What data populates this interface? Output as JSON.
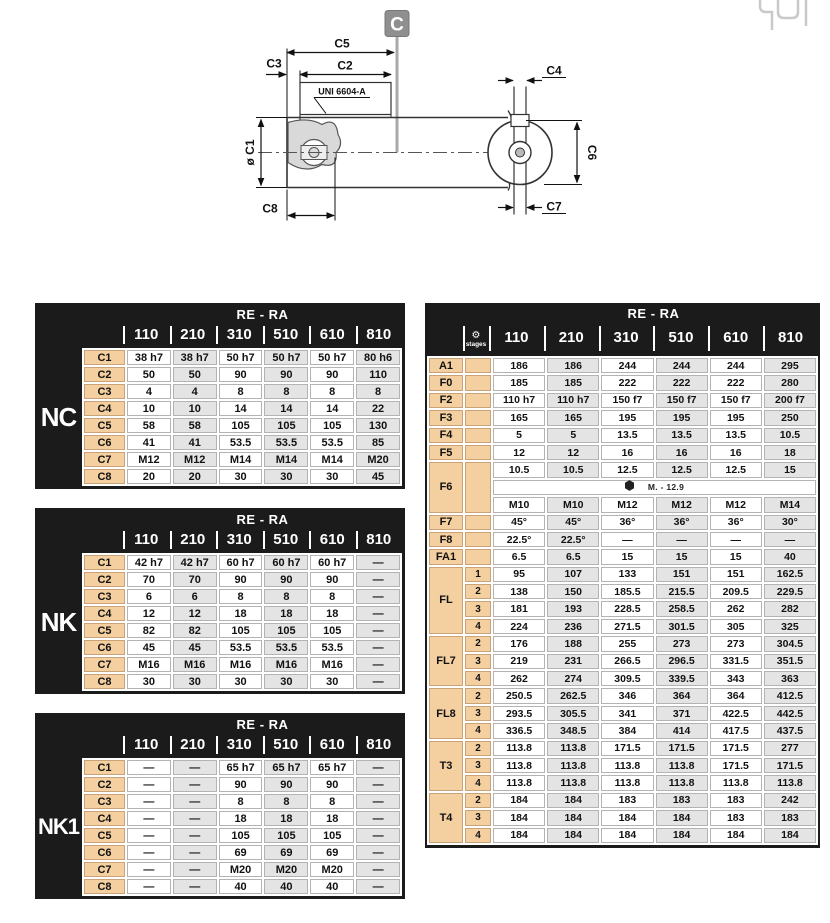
{
  "page_badge": "C",
  "drawing": {
    "labels": {
      "c5": "C5",
      "c2": "C2",
      "c3": "C3",
      "c1": "ø C1",
      "c8": "C8",
      "uni": "UNI 6604-A",
      "c4": "C4",
      "c6": "C6",
      "c7": "C7"
    }
  },
  "colors": {
    "header_black": "#1b1b1b",
    "label_peach": "#f4d0a0",
    "alt_gray": "#e4e4e4",
    "white": "#ffffff"
  },
  "left_tables": [
    {
      "name": "NC",
      "header": "RE - RA",
      "columns": [
        "110",
        "210",
        "310",
        "510",
        "610",
        "810"
      ],
      "rows": [
        {
          "label": "C1",
          "values": [
            "38 h7",
            "38 h7",
            "50 h7",
            "50 h7",
            "50 h7",
            "80 h6"
          ]
        },
        {
          "label": "C2",
          "values": [
            "50",
            "50",
            "90",
            "90",
            "90",
            "110"
          ]
        },
        {
          "label": "C3",
          "values": [
            "4",
            "4",
            "8",
            "8",
            "8",
            "8"
          ]
        },
        {
          "label": "C4",
          "values": [
            "10",
            "10",
            "14",
            "14",
            "14",
            "22"
          ]
        },
        {
          "label": "C5",
          "values": [
            "58",
            "58",
            "105",
            "105",
            "105",
            "130"
          ]
        },
        {
          "label": "C6",
          "values": [
            "41",
            "41",
            "53.5",
            "53.5",
            "53.5",
            "85"
          ]
        },
        {
          "label": "C7",
          "values": [
            "M12",
            "M12",
            "M14",
            "M14",
            "M14",
            "M20"
          ]
        },
        {
          "label": "C8",
          "values": [
            "20",
            "20",
            "30",
            "30",
            "30",
            "45"
          ]
        }
      ]
    },
    {
      "name": "NK",
      "header": "RE - RA",
      "columns": [
        "110",
        "210",
        "310",
        "510",
        "610",
        "810"
      ],
      "rows": [
        {
          "label": "C1",
          "values": [
            "42 h7",
            "42 h7",
            "60 h7",
            "60 h7",
            "60 h7",
            "—"
          ]
        },
        {
          "label": "C2",
          "values": [
            "70",
            "70",
            "90",
            "90",
            "90",
            "—"
          ]
        },
        {
          "label": "C3",
          "values": [
            "6",
            "6",
            "8",
            "8",
            "8",
            "—"
          ]
        },
        {
          "label": "C4",
          "values": [
            "12",
            "12",
            "18",
            "18",
            "18",
            "—"
          ]
        },
        {
          "label": "C5",
          "values": [
            "82",
            "82",
            "105",
            "105",
            "105",
            "—"
          ]
        },
        {
          "label": "C6",
          "values": [
            "45",
            "45",
            "53.5",
            "53.5",
            "53.5",
            "—"
          ]
        },
        {
          "label": "C7",
          "values": [
            "M16",
            "M16",
            "M16",
            "M16",
            "M16",
            "—"
          ]
        },
        {
          "label": "C8",
          "values": [
            "30",
            "30",
            "30",
            "30",
            "30",
            "—"
          ]
        }
      ]
    },
    {
      "name": "NK1",
      "header": "RE - RA",
      "columns": [
        "110",
        "210",
        "310",
        "510",
        "610",
        "810"
      ],
      "rows": [
        {
          "label": "C1",
          "values": [
            "—",
            "—",
            "65 h7",
            "65 h7",
            "65 h7",
            "—"
          ]
        },
        {
          "label": "C2",
          "values": [
            "—",
            "—",
            "90",
            "90",
            "90",
            "—"
          ]
        },
        {
          "label": "C3",
          "values": [
            "—",
            "—",
            "8",
            "8",
            "8",
            "—"
          ]
        },
        {
          "label": "C4",
          "values": [
            "—",
            "—",
            "18",
            "18",
            "18",
            "—"
          ]
        },
        {
          "label": "C5",
          "values": [
            "—",
            "—",
            "105",
            "105",
            "105",
            "—"
          ]
        },
        {
          "label": "C6",
          "values": [
            "—",
            "—",
            "69",
            "69",
            "69",
            "—"
          ]
        },
        {
          "label": "C7",
          "values": [
            "—",
            "—",
            "M20",
            "M20",
            "M20",
            "—"
          ]
        },
        {
          "label": "C8",
          "values": [
            "—",
            "—",
            "40",
            "40",
            "40",
            "—"
          ]
        }
      ]
    }
  ],
  "right_table": {
    "header": "RE - RA",
    "stages_header": {
      "icon": "gear-icon",
      "label": "stages"
    },
    "columns": [
      "110",
      "210",
      "310",
      "510",
      "610",
      "810"
    ],
    "simple_rows_top": [
      {
        "label": "A1",
        "values": [
          "186",
          "186",
          "244",
          "244",
          "244",
          "295"
        ]
      },
      {
        "label": "F0",
        "values": [
          "185",
          "185",
          "222",
          "222",
          "222",
          "280"
        ]
      },
      {
        "label": "F2",
        "values": [
          "110 h7",
          "110 h7",
          "150 f7",
          "150 f7",
          "150 f7",
          "200 f7"
        ]
      },
      {
        "label": "F3",
        "values": [
          "165",
          "165",
          "195",
          "195",
          "195",
          "250"
        ]
      },
      {
        "label": "F4",
        "values": [
          "5",
          "5",
          "13.5",
          "13.5",
          "13.5",
          "10.5"
        ]
      },
      {
        "label": "F5",
        "values": [
          "12",
          "12",
          "16",
          "16",
          "16",
          "18"
        ]
      }
    ],
    "f6": {
      "label": "F6",
      "row1": [
        "10.5",
        "10.5",
        "12.5",
        "12.5",
        "12.5",
        "15"
      ],
      "note": "M. - 12.9",
      "note_icon": "bolt-icon",
      "row2": [
        "M10",
        "M10",
        "M12",
        "M12",
        "M12",
        "M14"
      ]
    },
    "simple_rows_mid": [
      {
        "label": "F7",
        "values": [
          "45°",
          "45°",
          "36°",
          "36°",
          "36°",
          "30°"
        ]
      },
      {
        "label": "F8",
        "values": [
          "22.5°",
          "22.5°",
          "—",
          "—",
          "—",
          "—"
        ]
      },
      {
        "label": "FA1",
        "values": [
          "6.5",
          "6.5",
          "15",
          "15",
          "15",
          "40"
        ]
      }
    ],
    "stage_groups": [
      {
        "label": "FL",
        "rows": [
          {
            "stage": "1",
            "values": [
              "95",
              "107",
              "133",
              "151",
              "151",
              "162.5"
            ]
          },
          {
            "stage": "2",
            "values": [
              "138",
              "150",
              "185.5",
              "215.5",
              "209.5",
              "229.5"
            ]
          },
          {
            "stage": "3",
            "values": [
              "181",
              "193",
              "228.5",
              "258.5",
              "262",
              "282"
            ]
          },
          {
            "stage": "4",
            "values": [
              "224",
              "236",
              "271.5",
              "301.5",
              "305",
              "325"
            ]
          }
        ]
      },
      {
        "label": "FL7",
        "rows": [
          {
            "stage": "2",
            "values": [
              "176",
              "188",
              "255",
              "273",
              "273",
              "304.5"
            ]
          },
          {
            "stage": "3",
            "values": [
              "219",
              "231",
              "266.5",
              "296.5",
              "331.5",
              "351.5"
            ]
          },
          {
            "stage": "4",
            "values": [
              "262",
              "274",
              "309.5",
              "339.5",
              "343",
              "363"
            ]
          }
        ]
      },
      {
        "label": "FL8",
        "rows": [
          {
            "stage": "2",
            "values": [
              "250.5",
              "262.5",
              "346",
              "364",
              "364",
              "412.5"
            ]
          },
          {
            "stage": "3",
            "values": [
              "293.5",
              "305.5",
              "341",
              "371",
              "422.5",
              "442.5"
            ]
          },
          {
            "stage": "4",
            "values": [
              "336.5",
              "348.5",
              "384",
              "414",
              "417.5",
              "437.5"
            ]
          }
        ]
      },
      {
        "label": "T3",
        "rows": [
          {
            "stage": "2",
            "values": [
              "113.8",
              "113.8",
              "171.5",
              "171.5",
              "171.5",
              "277"
            ]
          },
          {
            "stage": "3",
            "values": [
              "113.8",
              "113.8",
              "113.8",
              "113.8",
              "171.5",
              "171.5"
            ]
          },
          {
            "stage": "4",
            "values": [
              "113.8",
              "113.8",
              "113.8",
              "113.8",
              "113.8",
              "113.8"
            ]
          }
        ]
      },
      {
        "label": "T4",
        "rows": [
          {
            "stage": "2",
            "values": [
              "184",
              "184",
              "183",
              "183",
              "183",
              "242"
            ]
          },
          {
            "stage": "3",
            "values": [
              "184",
              "184",
              "184",
              "184",
              "183",
              "183"
            ]
          },
          {
            "stage": "4",
            "values": [
              "184",
              "184",
              "184",
              "184",
              "184",
              "184"
            ]
          }
        ]
      }
    ]
  }
}
